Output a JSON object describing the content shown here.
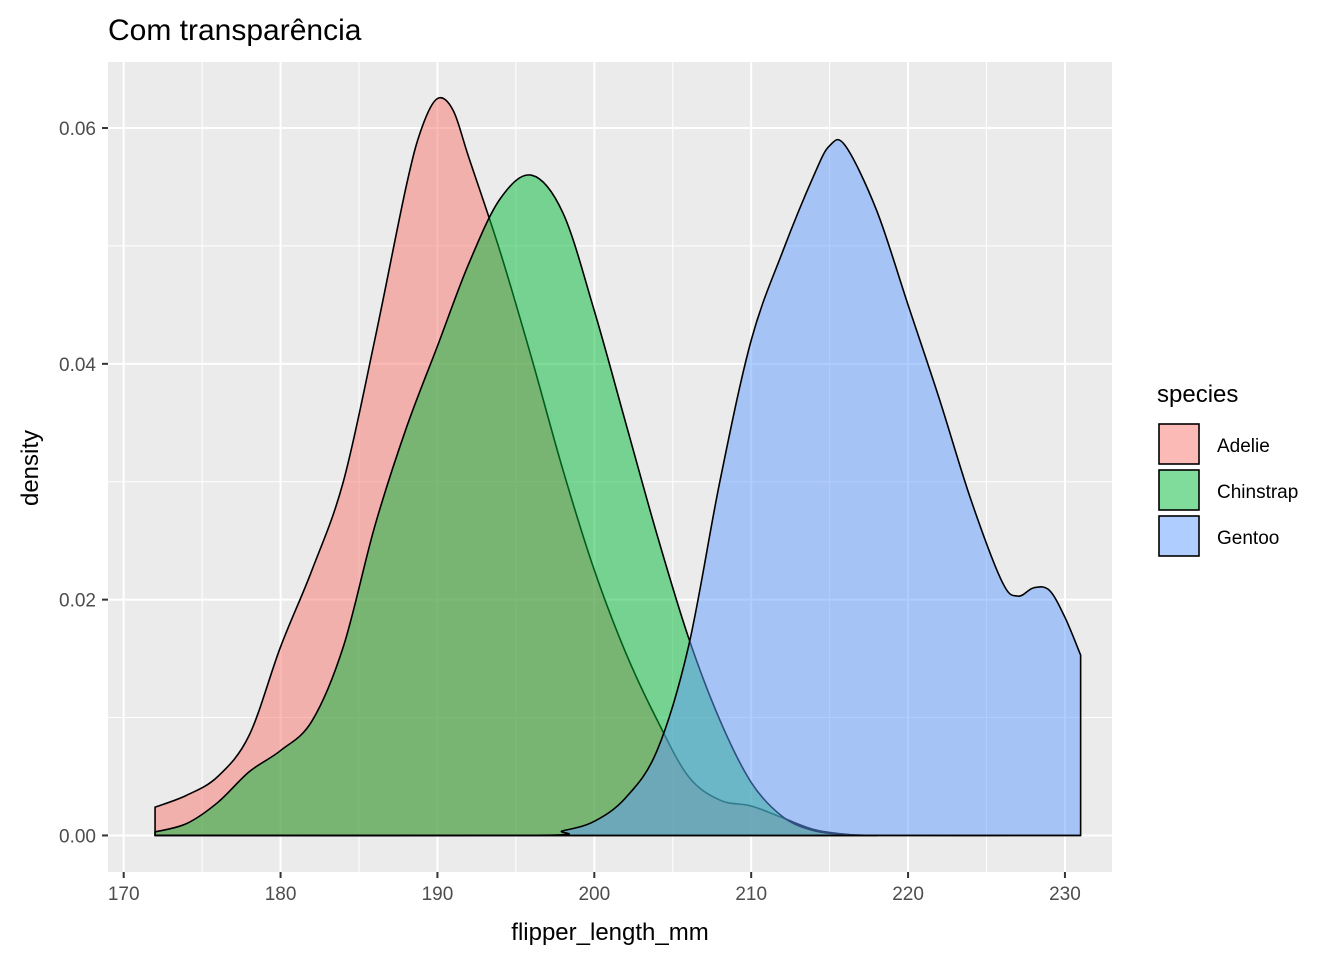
{
  "chart_data": {
    "type": "area",
    "title": "Com transparência",
    "xlabel": "flipper_length_mm",
    "ylabel": "density",
    "xlim": [
      169,
      233
    ],
    "ylim": [
      -0.0031,
      0.0656
    ],
    "x_ticks": [
      170,
      180,
      190,
      200,
      210,
      220,
      230
    ],
    "x_tick_labels": [
      "170",
      "180",
      "190",
      "200",
      "210",
      "220",
      "230"
    ],
    "y_ticks": [
      0.0,
      0.02,
      0.04,
      0.06
    ],
    "y_tick_labels": [
      "0.00",
      "0.02",
      "0.04",
      "0.06"
    ],
    "grid": true,
    "legend": {
      "title": "species",
      "position": "right"
    },
    "series": [
      {
        "name": "Adelie",
        "color": "#F8766D",
        "points": [
          [
            172,
            0.0024
          ],
          [
            174,
            0.0034
          ],
          [
            176,
            0.005
          ],
          [
            178,
            0.0085
          ],
          [
            180,
            0.016
          ],
          [
            182,
            0.0225
          ],
          [
            184,
            0.03
          ],
          [
            186,
            0.042
          ],
          [
            188,
            0.055
          ],
          [
            189,
            0.06
          ],
          [
            190,
            0.0625
          ],
          [
            191,
            0.0615
          ],
          [
            192,
            0.0575
          ],
          [
            194,
            0.0495
          ],
          [
            196,
            0.0405
          ],
          [
            198,
            0.031
          ],
          [
            200,
            0.0225
          ],
          [
            202,
            0.0155
          ],
          [
            204,
            0.0098
          ],
          [
            206,
            0.005
          ],
          [
            208,
            0.003
          ],
          [
            210,
            0.0025
          ],
          [
            212,
            0.0015
          ],
          [
            214,
            0.0005
          ],
          [
            216,
            0.0001
          ],
          [
            218,
            0.0
          ]
        ]
      },
      {
        "name": "Chinstrap",
        "color": "#00BA38",
        "points": [
          [
            172,
            0.0003
          ],
          [
            174,
            0.001
          ],
          [
            176,
            0.0028
          ],
          [
            178,
            0.0054
          ],
          [
            180,
            0.0072
          ],
          [
            182,
            0.0097
          ],
          [
            184,
            0.016
          ],
          [
            186,
            0.0262
          ],
          [
            188,
            0.0345
          ],
          [
            190,
            0.0415
          ],
          [
            192,
            0.0485
          ],
          [
            194,
            0.054
          ],
          [
            196,
            0.056
          ],
          [
            198,
            0.0528
          ],
          [
            200,
            0.0445
          ],
          [
            202,
            0.035
          ],
          [
            204,
            0.0255
          ],
          [
            206,
            0.0168
          ],
          [
            208,
            0.0098
          ],
          [
            210,
            0.0045
          ],
          [
            212,
            0.0016
          ],
          [
            214,
            0.0004
          ],
          [
            216,
            0.0001
          ],
          [
            218,
            0.0
          ],
          [
            231,
            0.0
          ]
        ]
      },
      {
        "name": "Gentoo",
        "color": "#619CFF",
        "points": [
          [
            172,
            0.0
          ],
          [
            196,
            0.0
          ],
          [
            198,
            0.0004
          ],
          [
            200,
            0.0012
          ],
          [
            202,
            0.0032
          ],
          [
            204,
            0.0072
          ],
          [
            206,
            0.016
          ],
          [
            208,
            0.03
          ],
          [
            210,
            0.042
          ],
          [
            212,
            0.0495
          ],
          [
            214,
            0.056
          ],
          [
            215,
            0.0585
          ],
          [
            216,
            0.0585
          ],
          [
            218,
            0.053
          ],
          [
            220,
            0.045
          ],
          [
            222,
            0.037
          ],
          [
            224,
            0.0285
          ],
          [
            226,
            0.0215
          ],
          [
            227,
            0.0203
          ],
          [
            228,
            0.021
          ],
          [
            229,
            0.0208
          ],
          [
            230,
            0.0185
          ],
          [
            231,
            0.0153
          ]
        ]
      }
    ]
  }
}
